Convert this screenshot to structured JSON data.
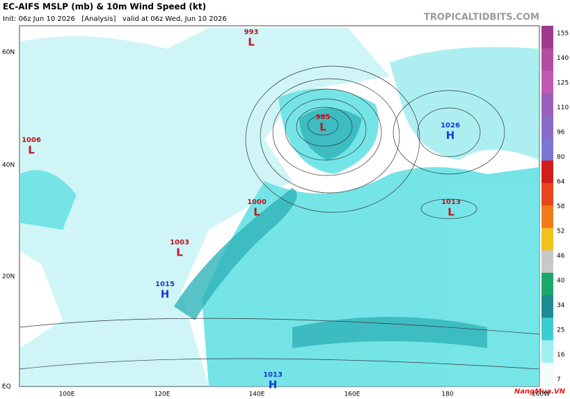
{
  "header": {
    "title": "EC-AIFS MSLP (mb) & 10m Wind Speed (kt)",
    "subtitle": "Init: 06z Jun 10 2026   [Analysis]   valid at 06z Wed, Jun 10 2026",
    "site": "TROPICALTIDBITS.COM"
  },
  "map": {
    "lat_labels": [
      "60N",
      "40N",
      "20N",
      "EQ"
    ],
    "lon_labels": [
      "100E",
      "120E",
      "140E",
      "160E",
      "180",
      "160W"
    ],
    "centers": [
      {
        "pressure": "993",
        "type": "L"
      },
      {
        "pressure": "985",
        "type": "L"
      },
      {
        "pressure": "1026",
        "type": "H"
      },
      {
        "pressure": "1013",
        "type": "L"
      },
      {
        "pressure": "1000",
        "type": "L"
      },
      {
        "pressure": "1006",
        "type": "L"
      },
      {
        "pressure": "1003",
        "type": "L"
      },
      {
        "pressure": "1015",
        "type": "H"
      },
      {
        "pressure": "1013",
        "type": "H"
      }
    ]
  },
  "colorbar": {
    "ticks": [
      155,
      140,
      125,
      110,
      96,
      80,
      64,
      58,
      52,
      46,
      40,
      34,
      25,
      16,
      7
    ]
  },
  "watermark": "NangMua.VN"
}
